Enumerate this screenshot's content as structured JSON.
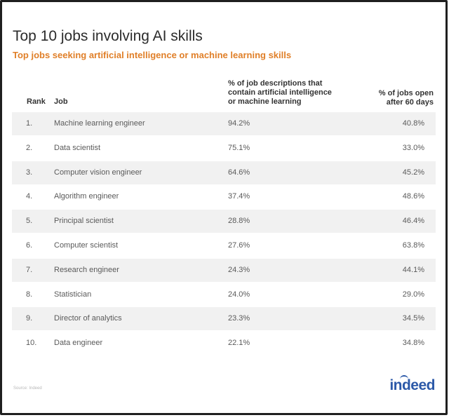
{
  "chart_data": {
    "type": "table",
    "title": "Top 10 jobs involving AI skills",
    "subtitle": "Top jobs seeking artificial intelligence or machine learning skills",
    "columns": {
      "rank": "Rank",
      "job": "Job",
      "pct_lines": [
        "% of job descriptions that",
        "contain artificial intelligence",
        "or machine learning"
      ],
      "open_lines": [
        "% of jobs open",
        "after 60 days"
      ]
    },
    "rows": [
      {
        "rank": "1.",
        "job": "Machine learning engineer",
        "pct": "94.2%",
        "open": "40.8%"
      },
      {
        "rank": "2.",
        "job": "Data scientist",
        "pct": "75.1%",
        "open": "33.0%"
      },
      {
        "rank": "3.",
        "job": "Computer vision engineer",
        "pct": "64.6%",
        "open": "45.2%"
      },
      {
        "rank": "4.",
        "job": "Algorithm engineer",
        "pct": "37.4%",
        "open": "48.6%"
      },
      {
        "rank": "5.",
        "job": "Principal scientist",
        "pct": "28.8%",
        "open": "46.4%"
      },
      {
        "rank": "6.",
        "job": "Computer scientist",
        "pct": "27.6%",
        "open": "63.8%"
      },
      {
        "rank": "7.",
        "job": "Research engineer",
        "pct": "24.3%",
        "open": "44.1%"
      },
      {
        "rank": "8.",
        "job": "Statistician",
        "pct": "24.0%",
        "open": "29.0%"
      },
      {
        "rank": "9.",
        "job": "Director of analytics",
        "pct": "23.3%",
        "open": "34.5%"
      },
      {
        "rank": "10.",
        "job": "Data engineer",
        "pct": "22.1%",
        "open": "34.8%"
      }
    ],
    "source": "Source: Indeed",
    "logo": "indeed"
  },
  "colors": {
    "title": "#2b2b2b",
    "subtitle": "#e07f28",
    "row_shade": "#f1f1f1",
    "logo": "#2c59a8"
  }
}
